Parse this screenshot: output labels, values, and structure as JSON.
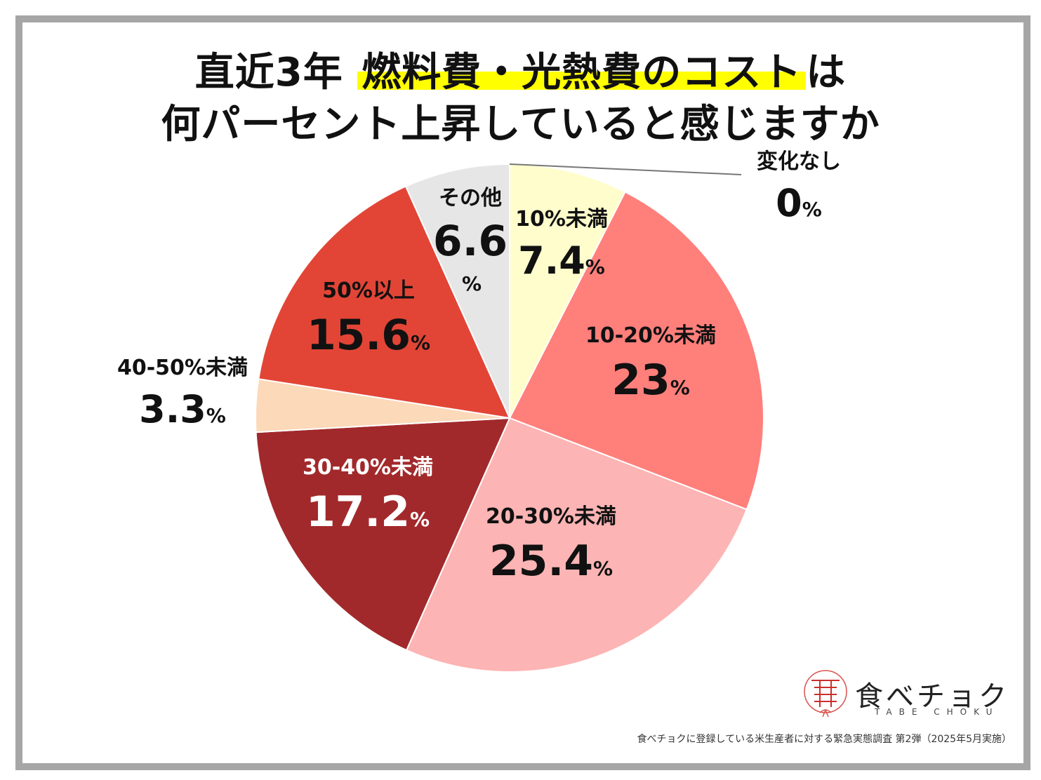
{
  "title": {
    "line1_pre": "直近3年",
    "line1_highlight": "燃料費・光熱費のコスト",
    "line1_post": "は",
    "line2": "何パーセント上昇していると感じますか"
  },
  "chart_data": {
    "type": "pie",
    "unit": "%",
    "slices": [
      {
        "label": "変化なし",
        "value": 0,
        "display": "0",
        "color": "#ffffff"
      },
      {
        "label": "10%未満",
        "value": 7.4,
        "display": "7.4",
        "color": "#fffdcc"
      },
      {
        "label": "10-20%未満",
        "value": 23,
        "display": "23",
        "color": "#ff7f7b"
      },
      {
        "label": "20-30%未満",
        "value": 25.4,
        "display": "25.4",
        "color": "#fdb4b4"
      },
      {
        "label": "30-40%未満",
        "value": 17.2,
        "display": "17.2",
        "color": "#a2292b"
      },
      {
        "label": "40-50%未満",
        "value": 3.3,
        "display": "3.3",
        "color": "#fcd9b9"
      },
      {
        "label": "50%以上",
        "value": 15.6,
        "display": "15.6",
        "color": "#e24536"
      },
      {
        "label": "その他",
        "value": 6.6,
        "display": "6.6",
        "color": "#e6e6e6"
      }
    ]
  },
  "logo": {
    "text": "食べチョク",
    "sub": "TABE CHOKU"
  },
  "source": "食べチョクに登録している米生産者に対する緊急実態調査 第2弾（2025年5月実施）"
}
